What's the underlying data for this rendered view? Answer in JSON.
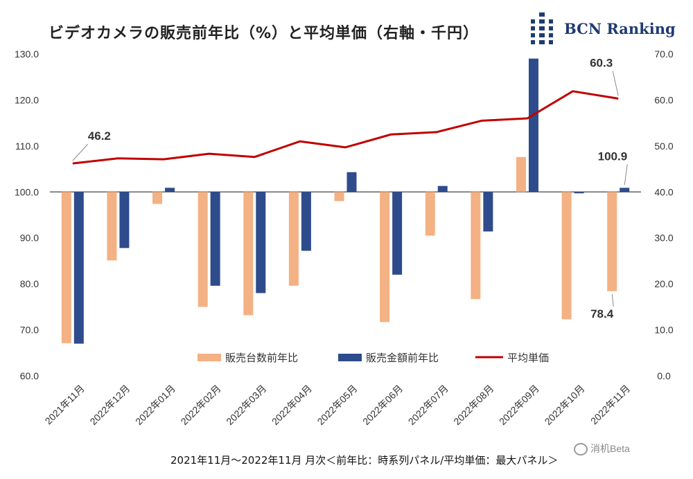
{
  "chart_data": {
    "type": "bar+line",
    "title": "ビデオカメラの販売前年比（%）と平均単価（右軸・千円）",
    "brand": "BCN Ranking",
    "footer": "2021年11月〜2022年11月 月次＜前年比：時系列パネル/平均単価：最大パネル＞",
    "watermark": "消机Beta",
    "categories": [
      "2021年11月",
      "2022年12月",
      "2022年01月",
      "2022年02月",
      "2022年03月",
      "2022年04月",
      "2022年05月",
      "2022年06月",
      "2022年07月",
      "2022年08月",
      "2022年09月",
      "2022年10月",
      "2022年11月"
    ],
    "series": [
      {
        "name": "販売台数前年比",
        "axis": "left",
        "color": "#f4b183",
        "values": [
          67.1,
          85.1,
          97.4,
          75.0,
          73.2,
          79.6,
          98.0,
          71.7,
          90.5,
          76.7,
          107.6,
          72.3,
          78.4
        ]
      },
      {
        "name": "販売金額前年比",
        "axis": "left",
        "color": "#2e4c8c",
        "values": [
          67.0,
          87.8,
          100.9,
          79.6,
          78.0,
          87.2,
          104.3,
          82.0,
          101.3,
          91.4,
          129.0,
          99.7,
          100.9
        ]
      },
      {
        "name": "平均単価",
        "axis": "right",
        "type": "line",
        "color": "#c00000",
        "values": [
          46.2,
          47.3,
          47.1,
          48.3,
          47.6,
          51.0,
          49.7,
          52.5,
          53.0,
          55.5,
          56.0,
          61.9,
          60.3
        ]
      }
    ],
    "yleft": {
      "min": 60.0,
      "max": 130.0,
      "ticks": [
        "60.0",
        "70.0",
        "80.0",
        "90.0",
        "100.0",
        "110.0",
        "120.0",
        "130.0"
      ],
      "baseline": 100.0
    },
    "yright": {
      "min": 0.0,
      "max": 70.0,
      "ticks": [
        "0.0",
        "10.0",
        "20.0",
        "30.0",
        "40.0",
        "50.0",
        "60.0",
        "70.0"
      ]
    },
    "annotations": [
      {
        "text": "46.2",
        "series": 2,
        "index": 0
      },
      {
        "text": "60.3",
        "series": 2,
        "index": 12
      },
      {
        "text": "100.9",
        "series": 1,
        "index": 12
      },
      {
        "text": "78.4",
        "series": 0,
        "index": 12
      }
    ],
    "gridlines": false
  }
}
